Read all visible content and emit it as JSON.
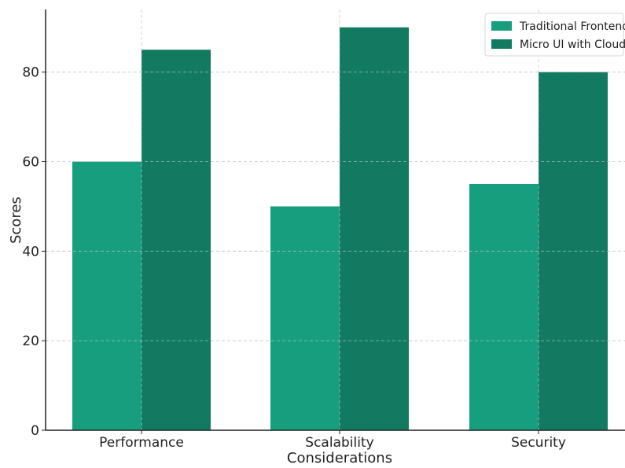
{
  "chart_data": {
    "type": "bar",
    "categories": [
      "Performance",
      "Scalability",
      "Security"
    ],
    "series": [
      {
        "name": "Traditional Frontend",
        "values": [
          60,
          50,
          55
        ],
        "color": "#169e7e"
      },
      {
        "name": "Micro UI with Cloud",
        "values": [
          85,
          90,
          80
        ],
        "color": "#127a60"
      }
    ],
    "title": "",
    "xlabel": "Considerations",
    "ylabel": "Scores",
    "ylim": [
      0,
      94
    ],
    "yticks": [
      0,
      20,
      40,
      60,
      80
    ],
    "grid": true,
    "legend_position": "top-right"
  }
}
